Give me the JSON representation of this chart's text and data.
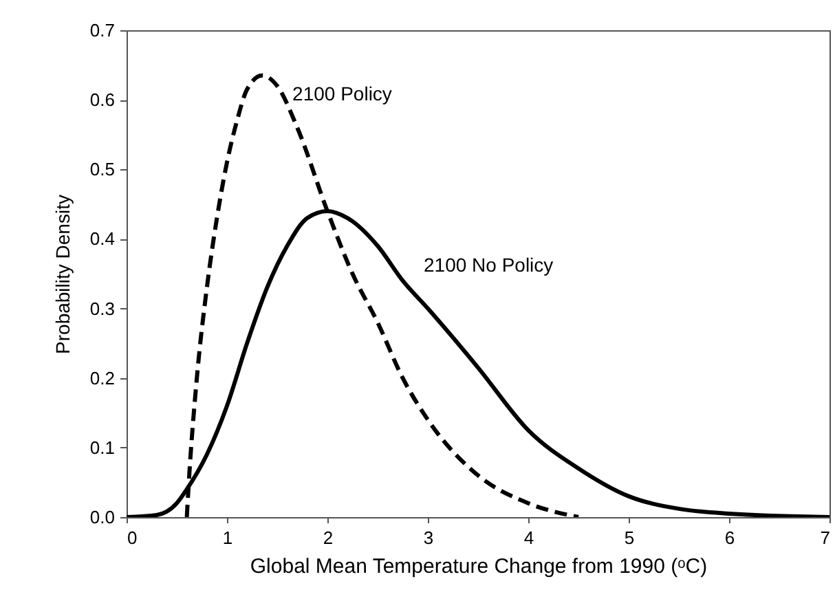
{
  "chart_data": {
    "type": "line",
    "xlabel": "Global Mean Temperature Change from 1990 (ᵒC)",
    "ylabel": "Probability Density",
    "xlim": [
      0,
      7
    ],
    "xticks": [
      0,
      1,
      2,
      3,
      4,
      5,
      6,
      7
    ],
    "ylim": [
      0,
      0.7
    ],
    "yticks": [
      {
        "value": 0,
        "label": "0.0"
      },
      0.1,
      0.2,
      0.3,
      0.4,
      0.5,
      0.6,
      0.7
    ],
    "grid": false,
    "marker": "none",
    "series": [
      {
        "name": "2100 Policy",
        "color": "#000000",
        "line_style": "dashed",
        "x": [
          0.6,
          0.62,
          0.7,
          0.8,
          0.9,
          1.0,
          1.1,
          1.2,
          1.35,
          1.5,
          1.7,
          2.0,
          2.25,
          2.5,
          2.75,
          3.0,
          3.5,
          4.0,
          4.5
        ],
        "values": [
          0,
          0.05,
          0.2,
          0.33,
          0.43,
          0.51,
          0.57,
          0.615,
          0.635,
          0.62,
          0.56,
          0.44,
          0.35,
          0.28,
          0.2,
          0.14,
          0.06,
          0.02,
          0.0
        ]
      },
      {
        "name": "2100 No Policy",
        "color": "#000000",
        "line_style": "solid",
        "x": [
          0,
          0.3,
          0.5,
          0.6,
          0.8,
          1.0,
          1.2,
          1.4,
          1.6,
          1.8,
          2.0,
          2.2,
          2.5,
          2.75,
          3.0,
          3.5,
          4.0,
          4.5,
          5.0,
          5.5,
          6.0,
          7.0
        ],
        "values": [
          0,
          0.003,
          0.02,
          0.04,
          0.09,
          0.16,
          0.25,
          0.33,
          0.39,
          0.43,
          0.44,
          0.43,
          0.39,
          0.34,
          0.3,
          0.215,
          0.125,
          0.07,
          0.03,
          0.012,
          0.005,
          0
        ]
      }
    ]
  }
}
